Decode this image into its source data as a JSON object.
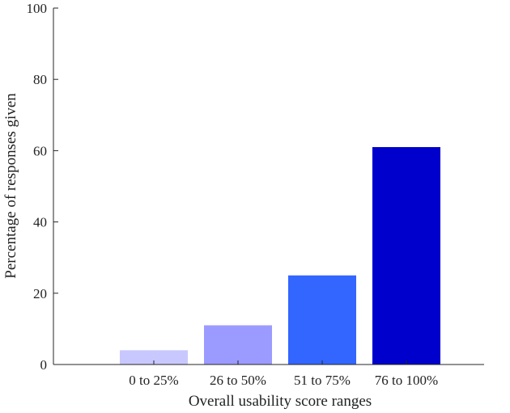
{
  "chart_data": {
    "type": "bar",
    "categories": [
      "0 to 25%",
      "26 to 50%",
      "51 to 75%",
      "76 to 100%"
    ],
    "values": [
      4,
      11,
      25,
      61
    ],
    "colors": [
      "#c8c8ff",
      "#9b9bff",
      "#3366ff",
      "#0000cc"
    ],
    "xlabel": "Overall usability score ranges",
    "ylabel": "Percentage of responses given",
    "ylim": [
      0,
      100
    ],
    "yticks": [
      0,
      20,
      40,
      60,
      80,
      100
    ],
    "grid": false
  }
}
